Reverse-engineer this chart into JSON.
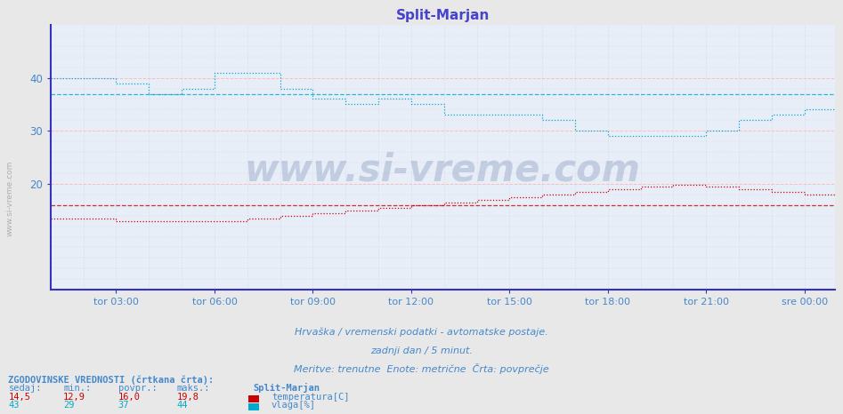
{
  "title": "Split-Marjan",
  "title_color": "#4444cc",
  "bg_color": "#e8e8e8",
  "plot_bg_color": "#e8eef8",
  "ylim": [
    0,
    50
  ],
  "yticks": [
    20,
    30,
    40
  ],
  "xlabel_times": [
    "tor 03:00",
    "tor 06:00",
    "tor 09:00",
    "tor 12:00",
    "tor 15:00",
    "tor 18:00",
    "tor 21:00",
    "sre 00:00"
  ],
  "n_points": 288,
  "temp_color": "#cc0000",
  "humid_color": "#00aacc",
  "avg_temp": 16.0,
  "avg_humid": 37,
  "footer_line1": "Hrvaška / vremenski podatki - avtomatske postaje.",
  "footer_line2": "zadnji dan / 5 minut.",
  "footer_line3": "Meritve: trenutne  Enote: metrične  Črta: povprečje",
  "footer_color": "#4488cc",
  "label_color": "#4488cc",
  "bottom_label": "ZGODOVINSKE VREDNOSTI (črtkana črta):",
  "col_headers": [
    "sedaj:",
    "min.:",
    "povpr.:",
    "maks.:"
  ],
  "temp_row": [
    "14,5",
    "12,9",
    "16,0",
    "19,8"
  ],
  "humid_row": [
    "43",
    "29",
    "37",
    "44"
  ],
  "station_name": "Split-Marjan",
  "series_labels": [
    "temperatura[C]",
    "vlaga[%]"
  ],
  "watermark": "www.si-vreme.com",
  "grid_color_h_major": "#ffbbbb",
  "grid_color_v": "#ccccdd",
  "axis_color": "#3333bb",
  "tick_color": "#4488cc",
  "spine_color": "#3333bb"
}
